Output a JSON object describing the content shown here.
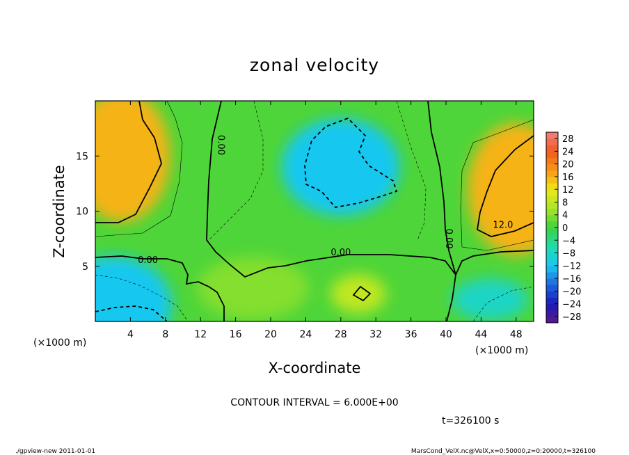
{
  "chart_data": {
    "type": "heatmap",
    "title": "zonal velocity",
    "xlabel": "X-coordinate",
    "ylabel": "Z-coordinate",
    "x_unit_label": "(×1000 m)",
    "y_unit_label": "(×1000 m)",
    "xlim": [
      0,
      50
    ],
    "ylim": [
      0,
      20
    ],
    "x_ticks": [
      4,
      8,
      12,
      16,
      20,
      24,
      28,
      32,
      36,
      40,
      44,
      48
    ],
    "y_ticks": [
      5,
      10,
      15
    ],
    "colorbar": {
      "ticks": [
        28,
        24,
        20,
        16,
        12,
        8,
        4,
        0,
        -4,
        -8,
        -12,
        -16,
        -20,
        -24,
        -28
      ],
      "range": [
        -30,
        30
      ]
    },
    "contour_interval_text": "CONTOUR INTERVAL = 6.000E+00",
    "contour_labels": [
      {
        "text": "0.00",
        "x": 14,
        "z": 16
      },
      {
        "text": "0.00",
        "x": 6,
        "z": 5.3
      },
      {
        "text": "0.00",
        "x": 28,
        "z": 6
      },
      {
        "text": "0.00",
        "x": 40,
        "z": 7.5
      },
      {
        "text": "12.0",
        "x": 46.5,
        "z": 8.5
      }
    ],
    "time_label": "t=326100 s",
    "features": [
      {
        "x": 3,
        "z": 15,
        "value": 16
      },
      {
        "x": 48,
        "z": 12,
        "value": 16
      },
      {
        "x": 28,
        "z": 14,
        "value": -12
      },
      {
        "x": 30,
        "z": 2.5,
        "value": 8
      },
      {
        "x": 2,
        "z": 1.5,
        "value": -12
      },
      {
        "x": 45,
        "z": 2,
        "value": -8
      },
      {
        "x": 18,
        "z": 3,
        "value": 4
      }
    ]
  },
  "footer": {
    "left": "./gpview-new   2011-01-01",
    "right": "MarsCond_VelX.nc@VelX,x=0:50000,z=0:20000,t=326100"
  }
}
